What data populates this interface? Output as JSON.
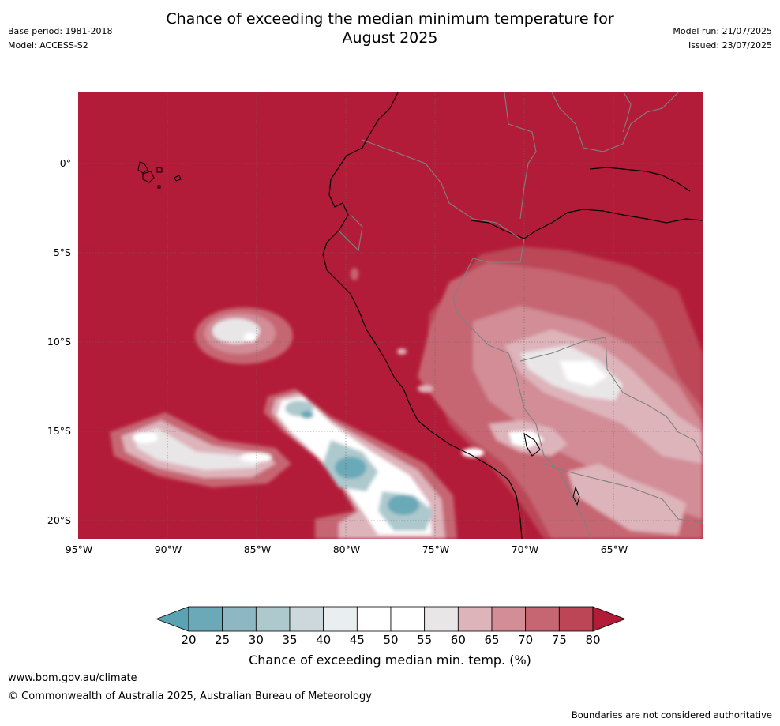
{
  "title_line1": "Chance of exceeding the median minimum temperature for",
  "title_line2": "August 2025",
  "meta_left": {
    "base_period": "Base period: 1981-2018",
    "model": "Model: ACCESS-S2"
  },
  "meta_right": {
    "model_run": "Model run: 21/07/2025",
    "issued": "Issued: 23/07/2025"
  },
  "lat_labels": [
    "0°",
    "5°S",
    "10°S",
    "15°S",
    "20°S"
  ],
  "lon_labels": [
    "95°W",
    "90°W",
    "85°W",
    "80°W",
    "75°W",
    "70°W",
    "65°W"
  ],
  "colorbar": {
    "ticks": [
      "20",
      "25",
      "30",
      "35",
      "40",
      "45",
      "50",
      "55",
      "60",
      "65",
      "70",
      "75",
      "80"
    ],
    "colors": [
      "#5aa3b2",
      "#6ba9b8",
      "#8db8c3",
      "#adc9cd",
      "#ccd8db",
      "#e9eef1",
      "#ffffff",
      "#ffffff",
      "#e9e6e8",
      "#deb4bb",
      "#d28d97",
      "#c66672",
      "#bd4656",
      "#b31c38"
    ],
    "label": "Chance of exceeding median min. temp. (%)"
  },
  "footer": {
    "url": "www.bom.gov.au/climate",
    "copyright": "© Commonwealth of Australia 2025, Australian Bureau of Meteorology",
    "note": "Boundaries are not considered authoritative"
  }
}
